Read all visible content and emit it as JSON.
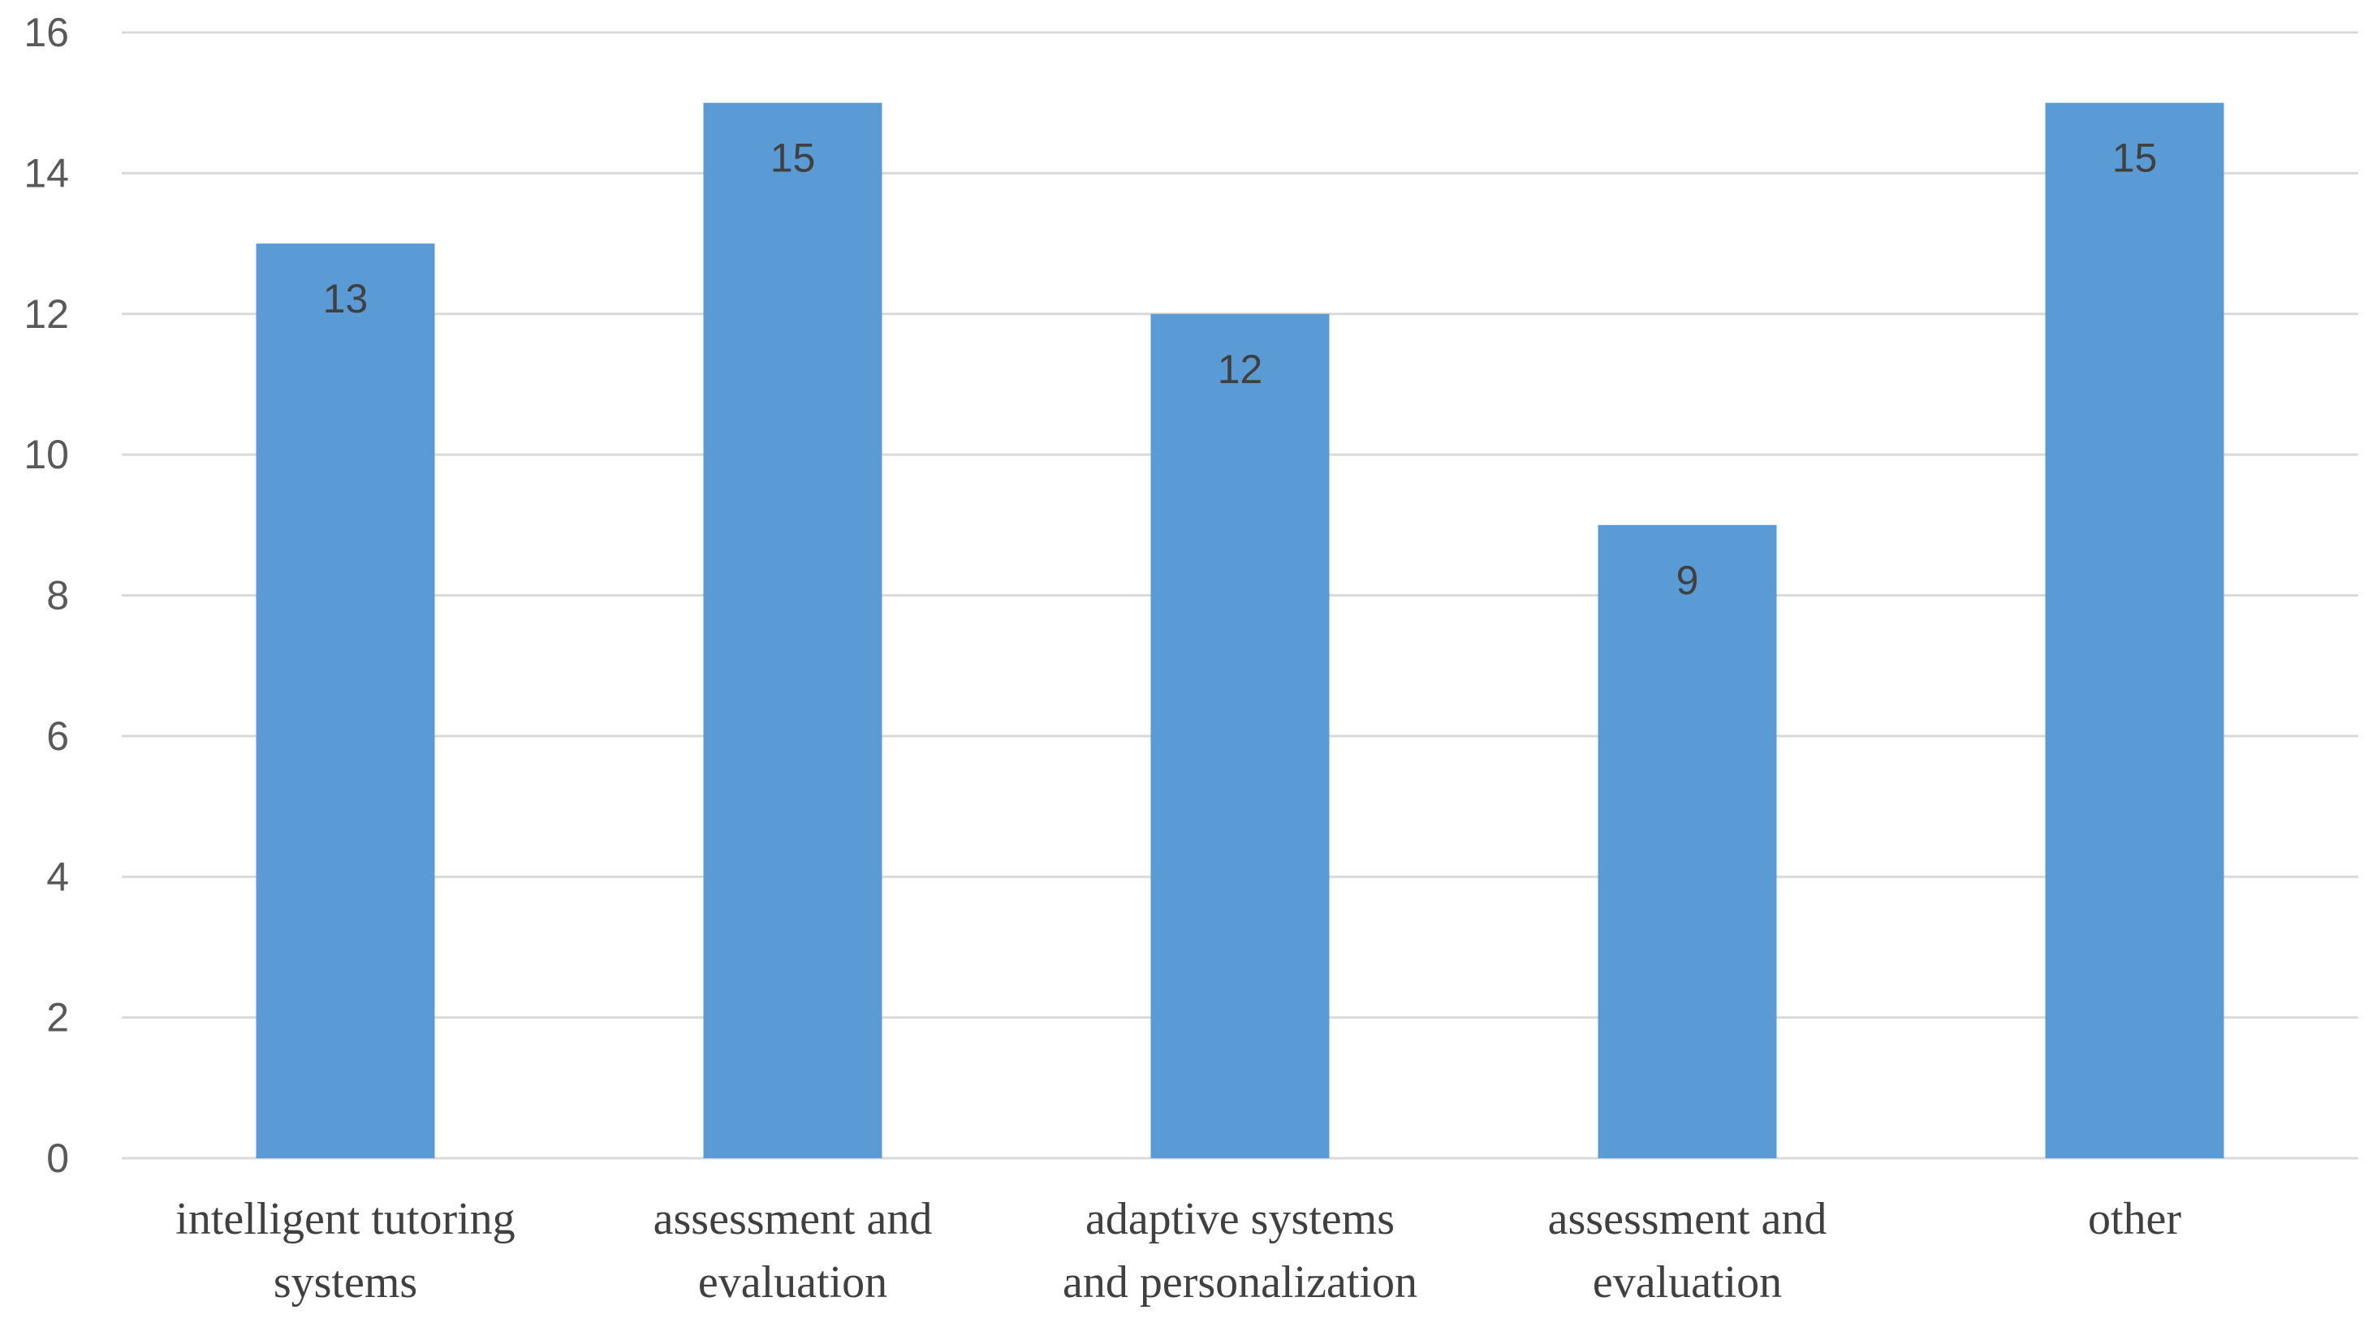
{
  "chart_data": {
    "type": "bar",
    "title": "",
    "xlabel": "",
    "ylabel": "",
    "categories": [
      [
        "intelligent tutoring",
        "systems"
      ],
      [
        "assessment and",
        "evaluation"
      ],
      [
        "adaptive systems",
        "and personalization"
      ],
      [
        "assessment and",
        "evaluation"
      ],
      [
        "other"
      ]
    ],
    "values": [
      13,
      15,
      12,
      9,
      15
    ],
    "ylim": [
      0,
      16
    ],
    "yticks": [
      0,
      2,
      4,
      6,
      8,
      10,
      12,
      14,
      16
    ],
    "grid": true,
    "legend": "none",
    "data_labels": true,
    "bar_color": "#5b9bd5"
  }
}
